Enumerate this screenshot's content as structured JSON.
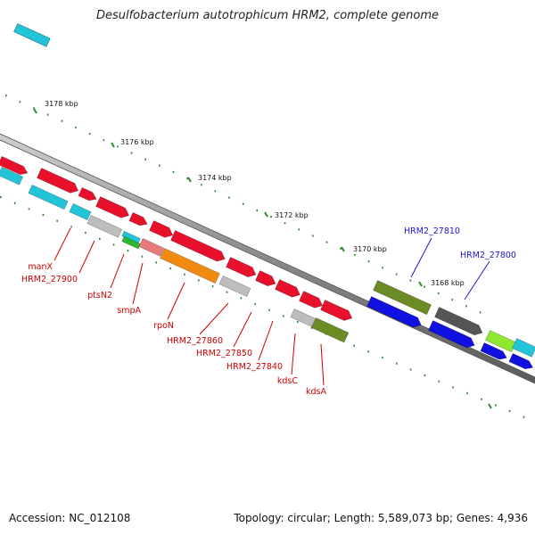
{
  "title": "Desulfobacterium autotrophicum HRM2, complete genome",
  "footer": {
    "accession": "Accession: NC_012108",
    "summary": "Topology: circular; Length: 5,589,073 bp; Genes: 4,936"
  },
  "ticks": [
    {
      "label": "3178 kbp"
    },
    {
      "label": "3176 kbp"
    },
    {
      "label": "3174 kbp"
    },
    {
      "label": "3172 kbp"
    },
    {
      "label": "3170 kbp"
    },
    {
      "label": "3168 kbp"
    }
  ],
  "genes_red": [
    {
      "name": "manX"
    },
    {
      "name": "HRM2_27900"
    },
    {
      "name": "ptsN2"
    },
    {
      "name": "smpA"
    },
    {
      "name": "rpoN"
    },
    {
      "name": "HRM2_27860"
    },
    {
      "name": "HRM2_27850"
    },
    {
      "name": "HRM2_27840"
    },
    {
      "name": "kdsC"
    },
    {
      "name": "kdsA"
    }
  ],
  "genes_blue": [
    {
      "name": "HRM2_27810"
    },
    {
      "name": "HRM2_27800"
    }
  ],
  "colors": {
    "red": "#e8102a",
    "cyan": "#22c4d8",
    "gray": "#bdbdbd",
    "orange": "#f08a10",
    "salmon": "#e87a7a",
    "green": "#2cb82c",
    "olive": "#6b8c24",
    "blue": "#1010e0",
    "darkgray": "#555555",
    "lime": "#8ee830",
    "tick": "#2a8a2a",
    "backbone": "#777777",
    "label_red": "#cc0000",
    "label_blue": "#1a1acc"
  }
}
